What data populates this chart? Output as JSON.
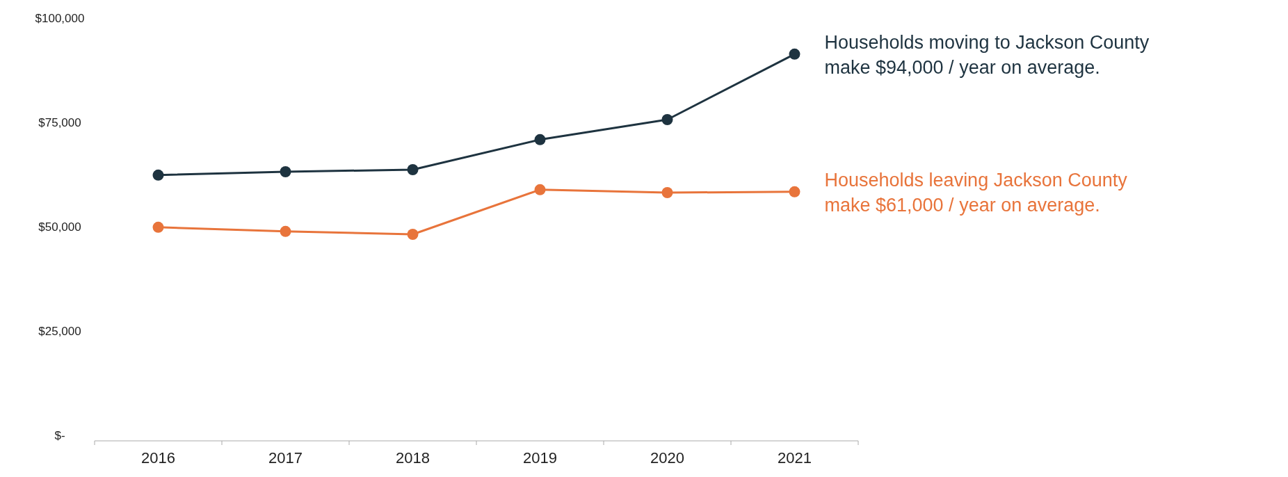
{
  "chart_data": {
    "type": "line",
    "categories": [
      "2016",
      "2017",
      "2018",
      "2019",
      "2020",
      "2021"
    ],
    "series": [
      {
        "color": "#1e3340",
        "values": [
          62700,
          63500,
          64000,
          71200,
          76000,
          91700
        ]
      },
      {
        "color": "#e8743b",
        "values": [
          50200,
          49200,
          48500,
          59200,
          58500,
          58700
        ]
      }
    ],
    "ylim": [
      0,
      100000
    ],
    "yticks": [
      {
        "value": 0,
        "label": "$-"
      },
      {
        "value": 25000,
        "label": "$25,000"
      },
      {
        "value": 50000,
        "label": "$50,000"
      },
      {
        "value": 75000,
        "label": "$75,000"
      },
      {
        "value": 100000,
        "label": "$100,000"
      }
    ],
    "marker": "circle",
    "line_style": "solid",
    "grid": false,
    "annotations": [
      {
        "text": "Households moving to Jackson County\nmake $94,000 / year on average.",
        "x": "2021",
        "y": 91700
      },
      {
        "text": "Households leaving Jackson County\nmake $61,000 / year on average.",
        "x": "2021",
        "y": 58700
      }
    ]
  }
}
